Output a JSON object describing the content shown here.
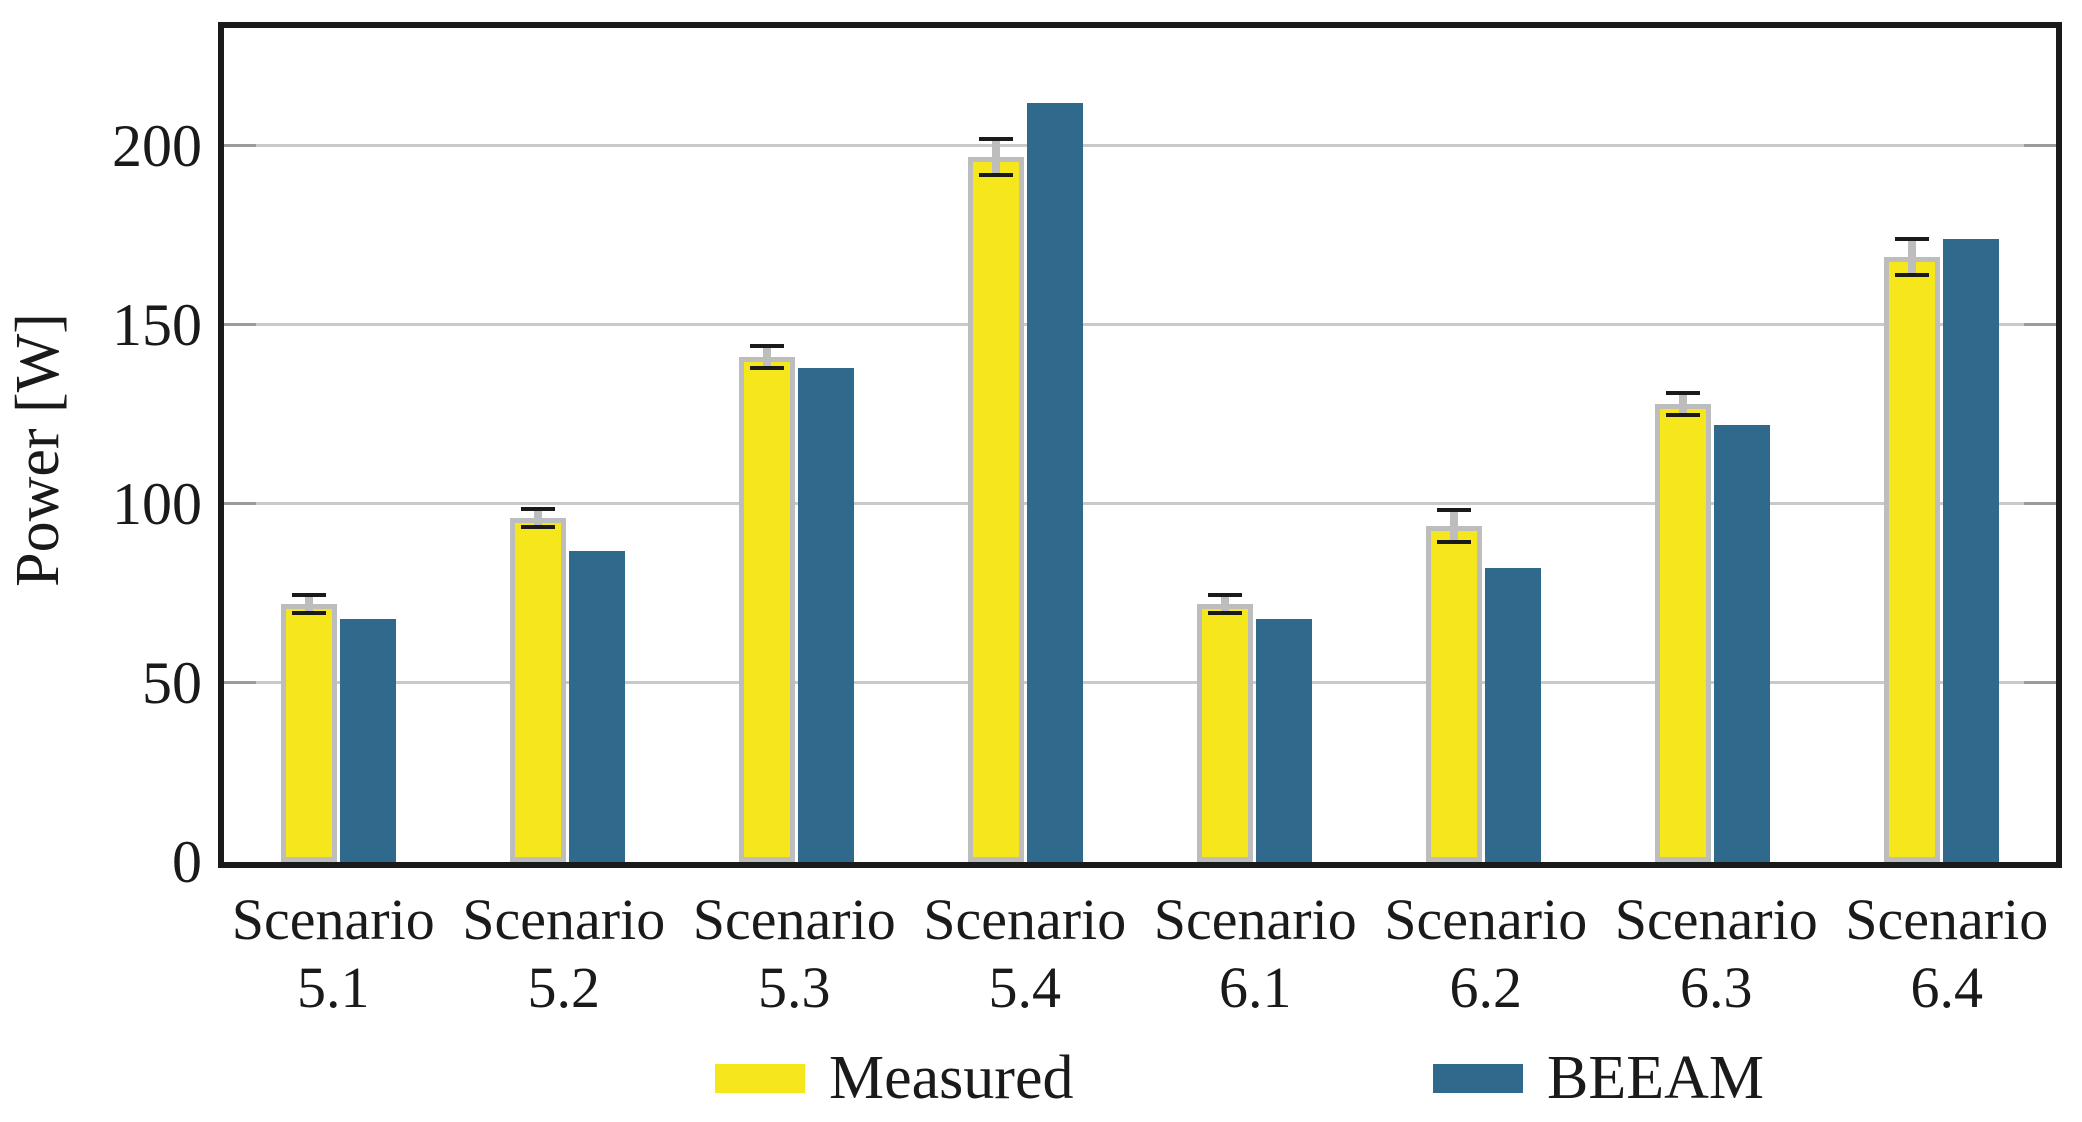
{
  "chart_data": {
    "type": "bar",
    "title": "",
    "categories": [
      "Scenario 5.1",
      "Scenario 5.2",
      "Scenario 5.3",
      "Scenario 5.4",
      "Scenario 6.1",
      "Scenario 6.2",
      "Scenario 6.3",
      "Scenario 6.4"
    ],
    "series": [
      {
        "name": "Measured",
        "color": "#f6e71d",
        "values": [
          72,
          96,
          141,
          197,
          72,
          94,
          128,
          169
        ],
        "errors": [
          2.5,
          2.5,
          3,
          5,
          2.5,
          4.5,
          3,
          5
        ]
      },
      {
        "name": "BEEAM",
        "color": "#2f6a8d",
        "values": [
          68,
          87,
          138,
          212,
          68,
          82,
          122,
          174
        ]
      }
    ],
    "xlabel": "",
    "ylabel": "Power [W]",
    "yticks": [
      0,
      50,
      100,
      150,
      200
    ],
    "ylim": [
      0,
      233
    ],
    "grid": true,
    "gridline_color": "#c9c9c9",
    "frame_color": "#1a1a1a",
    "error_bar_line_color": "#bdbdbd",
    "error_bar_cap_color": "#1a1a1a",
    "measured_bar_border_color": "#bdbdbd",
    "legend_position": "bottom"
  }
}
